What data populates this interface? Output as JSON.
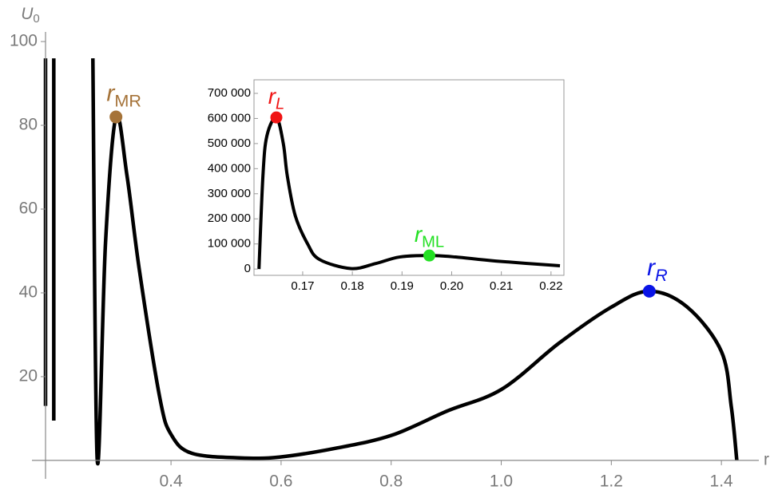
{
  "chart_data": [
    {
      "type": "line",
      "x_label": "r",
      "y_label": {
        "main": "U",
        "sub": "0"
      },
      "x": [
        0.172,
        0.172,
        0.18,
        0.187,
        0.187,
        0.22,
        0.258,
        0.266,
        0.281,
        0.3,
        0.32,
        0.343,
        0.38,
        0.401,
        0.438,
        0.525,
        0.597,
        0.699,
        0.801,
        0.902,
        1.001,
        1.105,
        1.2,
        1.269,
        1.338,
        1.4,
        1.418,
        1.428
      ],
      "series": [
        {
          "color": "#000000",
          "values": [
            96,
            13,
            null,
            96,
            9.5,
            null,
            96,
            0,
            52,
            82,
            68,
            45,
            14.7,
            6,
            1.7,
            0.6,
            0.8,
            2.9,
            6,
            11.8,
            17,
            28,
            36.6,
            40.4,
            36.6,
            26,
            12.8,
            0
          ]
        }
      ],
      "xlim": [
        0.172,
        1.468
      ],
      "ylim": [
        -4.4,
        102.3
      ],
      "xticks": [
        0.4,
        0.6,
        0.8,
        {
          "value": 1,
          "label": "1.0"
        },
        1.2,
        1.4
      ],
      "yticks": [
        20,
        40,
        60,
        80,
        100
      ],
      "points": [
        {
          "main": "r",
          "sub": "MR",
          "sub_italic": false,
          "color": "#a57339",
          "x": 0.3,
          "y": 82
        },
        {
          "main": "r",
          "sub": "R",
          "sub_italic": true,
          "color": "#0a14e6",
          "x": 1.269,
          "y": 40.4
        }
      ]
    },
    {
      "type": "line",
      "x": [
        0.1612,
        0.162,
        0.1628,
        0.1647,
        0.1661,
        0.1669,
        0.1685,
        0.171,
        0.1734,
        0.1797,
        0.1847,
        0.1895,
        0.1955,
        0.2008,
        0.2089,
        0.2218
      ],
      "series": [
        {
          "color": "#000000",
          "values": [
            0,
            372000,
            531000,
            604000,
            500000,
            372000,
            213000,
            100000,
            38000,
            2000,
            22000,
            48000,
            54000,
            48000,
            32000,
            13000
          ]
        }
      ],
      "xlim": [
        0.1602,
        0.2226
      ],
      "ylim": [
        -25000,
        754000
      ],
      "xticks": [
        0.17,
        0.18,
        0.19,
        {
          "value": 0.2,
          "label": "0.20"
        },
        0.21,
        0.22
      ],
      "yticks": [
        0,
        {
          "value": 100000,
          "label": "100 000"
        },
        {
          "value": 200000,
          "label": "200 000"
        },
        {
          "value": 300000,
          "label": "300 000"
        },
        {
          "value": 400000,
          "label": "400 000"
        },
        {
          "value": 500000,
          "label": "500 000"
        },
        {
          "value": 600000,
          "label": "600 000"
        },
        {
          "value": 700000,
          "label": "700 000"
        }
      ],
      "points": [
        {
          "main": "r",
          "sub": "L",
          "sub_italic": true,
          "color": "#f01414",
          "x": 0.1647,
          "y": 604000
        },
        {
          "main": "r",
          "sub": "ML",
          "sub_italic": false,
          "color": "#22e022",
          "x": 0.1955,
          "y": 54000
        }
      ]
    }
  ]
}
